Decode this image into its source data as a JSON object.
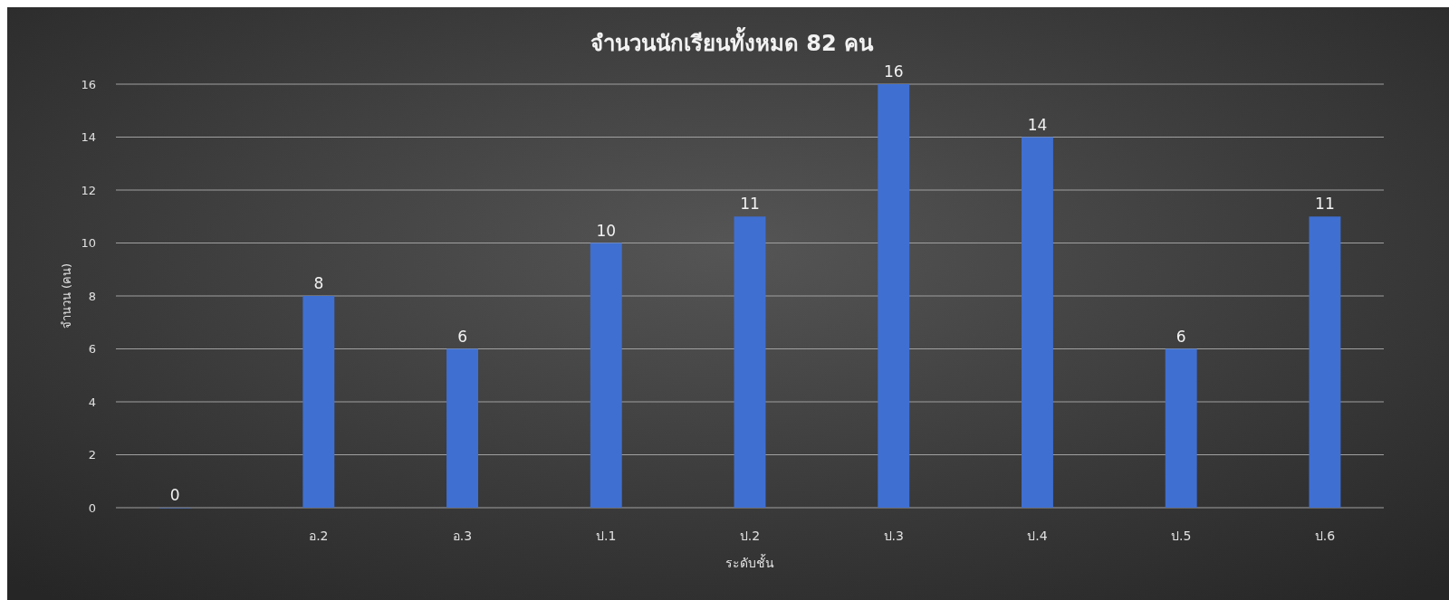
{
  "chart_data": {
    "type": "bar",
    "title": "จำนวนนักเรียนทั้งหมด 82 คน",
    "xlabel": "ระดับชั้น",
    "ylabel": "จำนวน (คน)",
    "categories": [
      null,
      "อ.2",
      "อ.3",
      "ป.1",
      "ป.2",
      "ป.3",
      "ป.4",
      "ป.5",
      "ป.6"
    ],
    "values": [
      0,
      8,
      6,
      10,
      11,
      16,
      14,
      6,
      11
    ],
    "color": "#3f6fd1",
    "ylim": [
      0,
      16
    ],
    "yticks": [
      0,
      2,
      4,
      6,
      8,
      10,
      12,
      14,
      16
    ],
    "grid": "y",
    "data_labels": true
  }
}
